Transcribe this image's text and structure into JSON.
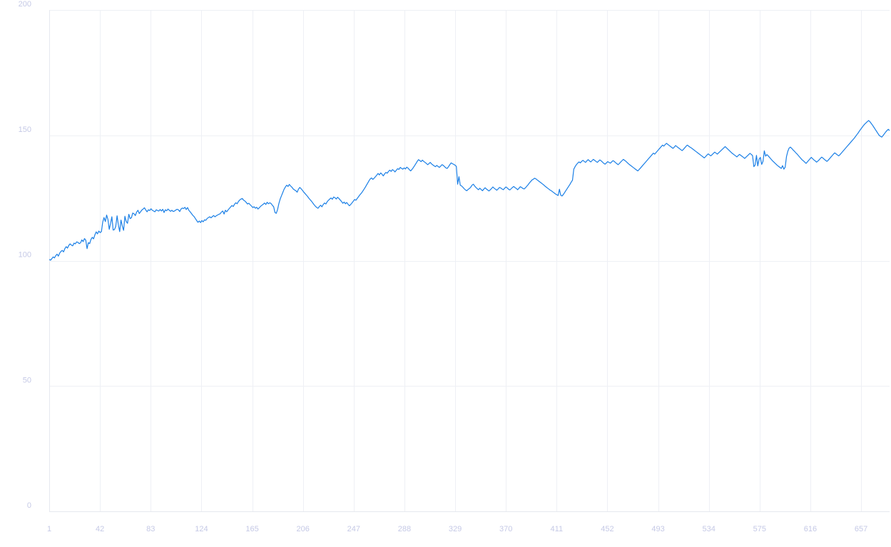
{
  "chart_data": {
    "type": "line",
    "title": "",
    "xlabel": "",
    "ylabel": "",
    "x_range": [
      1,
      680
    ],
    "ylim": [
      0,
      200
    ],
    "y_ticks": [
      0,
      50,
      100,
      150,
      200
    ],
    "x_ticks": [
      1,
      42,
      83,
      124,
      165,
      206,
      247,
      288,
      329,
      370,
      411,
      452,
      493,
      534,
      575,
      616,
      657
    ],
    "grid": true,
    "legend": "none",
    "colors": {
      "line": "#1a7fe6",
      "grid": "#eef0f5",
      "tick_text": "#c5c9e6"
    },
    "series": [
      {
        "values": [
          100.5,
          100.2,
          100.8,
          101.5,
          101.1,
          102.0,
          102.6,
          101.8,
          103.0,
          103.7,
          104.1,
          103.5,
          104.8,
          105.6,
          105.0,
          106.1,
          106.7,
          106.2,
          105.9,
          107.0,
          106.7,
          107.5,
          107.3,
          106.8,
          107.1,
          108.3,
          107.6,
          108.8,
          108.2,
          104.8,
          107.2,
          106.8,
          108.5,
          109.3,
          108.7,
          110.3,
          111.5,
          110.7,
          111.8,
          111.2,
          111.6,
          115.4,
          117.2,
          115.6,
          118.2,
          116.4,
          112.5,
          114.8,
          117.5,
          112.2,
          112.4,
          113.7,
          117.9,
          114.2,
          111.6,
          116.2,
          113.8,
          112.1,
          117.7,
          115.6,
          114.9,
          118.5,
          116.8,
          117.1,
          119.0,
          118.7,
          118.0,
          119.4,
          120.1,
          118.8,
          119.5,
          120.2,
          120.6,
          121.1,
          120.2,
          119.5,
          120.3,
          120.0,
          120.7,
          120.1,
          119.8,
          119.5,
          120.3,
          120.0,
          119.8,
          120.4,
          119.8,
          120.5,
          119.2,
          120.3,
          119.9,
          120.6,
          120.1,
          119.7,
          120.1,
          119.6,
          119.8,
          120.2,
          120.5,
          120.3,
          119.6,
          120.6,
          121.0,
          120.8,
          121.3,
          120.4,
          121.2,
          120.1,
          119.5,
          118.8,
          118.1,
          117.6,
          116.8,
          116.0,
          115.3,
          115.8,
          115.2,
          116.0,
          115.5,
          116.3,
          116.1,
          116.8,
          117.2,
          117.5,
          117.1,
          117.6,
          118.0,
          117.5,
          117.9,
          118.2,
          118.5,
          118.7,
          119.4,
          119.8,
          118.6,
          120.1,
          119.5,
          120.2,
          120.8,
          121.4,
          122.0,
          121.6,
          122.5,
          123.1,
          122.7,
          123.6,
          124.2,
          124.6,
          124.8,
          124.1,
          123.8,
          123.2,
          122.6,
          122.9,
          122.3,
          121.8,
          121.2,
          121.5,
          120.9,
          121.3,
          120.6,
          121.1,
          121.7,
          122.1,
          122.5,
          123.0,
          122.4,
          123.3,
          122.7,
          123.1,
          122.8,
          122.1,
          121.5,
          119.2,
          118.9,
          120.4,
          122.8,
          124.6,
          125.9,
          127.2,
          128.5,
          129.4,
          130.1,
          129.6,
          130.4,
          129.8,
          129.3,
          128.6,
          128.2,
          127.9,
          127.3,
          128.5,
          129.2,
          128.7,
          128.1,
          127.4,
          126.8,
          126.2,
          125.6,
          124.9,
          124.3,
          123.7,
          123.0,
          122.3,
          121.7,
          121.2,
          120.9,
          121.6,
          122.1,
          121.5,
          122.4,
          123.0,
          122.6,
          123.5,
          124.1,
          124.6,
          125.0,
          124.5,
          125.4,
          125.1,
          124.6,
          125.3,
          124.8,
          124.2,
          123.6,
          122.9,
          123.4,
          122.7,
          123.2,
          122.5,
          121.9,
          122.4,
          123.0,
          123.7,
          124.4,
          124.1,
          124.8,
          125.5,
          126.2,
          126.8,
          127.5,
          128.3,
          129.1,
          130.0,
          130.9,
          131.8,
          132.6,
          133.0,
          132.4,
          132.9,
          133.5,
          134.1,
          134.8,
          134.2,
          135.0,
          134.5,
          133.8,
          134.6,
          135.2,
          134.9,
          135.6,
          136.1,
          135.6,
          136.3,
          136.0,
          135.4,
          136.1,
          136.7,
          136.4,
          137.2,
          136.8,
          136.5,
          137.0,
          136.6,
          137.3,
          136.9,
          136.3,
          135.8,
          136.4,
          137.1,
          137.9,
          138.7,
          139.6,
          140.3,
          139.9,
          139.5,
          140.1,
          139.6,
          139.2,
          138.8,
          138.3,
          138.7,
          139.2,
          138.6,
          138.2,
          137.8,
          137.5,
          138.0,
          137.6,
          137.2,
          137.7,
          138.3,
          138.0,
          137.5,
          137.0,
          136.8,
          137.5,
          138.3,
          139.0,
          138.7,
          138.4,
          138.1,
          137.6,
          130.5,
          133.5,
          130.1,
          129.8,
          129.3,
          128.7,
          128.2,
          127.9,
          128.4,
          128.8,
          129.3,
          130.1,
          130.5,
          129.8,
          129.2,
          128.7,
          128.3,
          128.9,
          128.4,
          127.9,
          128.5,
          129.1,
          128.6,
          128.2,
          127.8,
          128.3,
          128.8,
          129.4,
          128.9,
          128.5,
          128.1,
          128.6,
          129.2,
          129.0,
          128.6,
          128.3,
          128.9,
          129.4,
          129.0,
          128.5,
          128.2,
          128.7,
          129.2,
          129.6,
          129.1,
          128.8,
          128.3,
          128.9,
          129.5,
          129.2,
          128.8,
          128.6,
          129.1,
          129.7,
          130.3,
          131.0,
          131.6,
          132.2,
          132.5,
          132.9,
          132.6,
          132.2,
          131.8,
          131.4,
          131.0,
          130.6,
          130.2,
          129.7,
          129.3,
          128.9,
          128.5,
          128.1,
          127.8,
          127.4,
          127.0,
          126.6,
          126.3,
          126.0,
          128.5,
          126.1,
          125.8,
          126.4,
          127.2,
          128.0,
          128.8,
          129.6,
          130.4,
          131.3,
          132.1,
          136.5,
          137.5,
          138.3,
          138.9,
          139.4,
          139.0,
          139.6,
          140.0,
          139.6,
          139.2,
          139.8,
          140.3,
          139.8,
          139.4,
          139.9,
          140.4,
          140.0,
          139.6,
          139.2,
          139.7,
          140.2,
          139.8,
          139.3,
          138.8,
          138.5,
          139.0,
          139.5,
          139.2,
          138.9,
          139.4,
          139.9,
          139.6,
          139.1,
          138.7,
          138.3,
          138.8,
          139.4,
          139.9,
          140.4,
          140.0,
          139.6,
          139.1,
          138.6,
          138.2,
          137.8,
          137.4,
          137.0,
          136.6,
          136.2,
          135.8,
          136.3,
          136.9,
          137.5,
          138.1,
          138.7,
          139.3,
          139.9,
          140.5,
          141.1,
          141.7,
          142.3,
          142.9,
          142.5,
          143.1,
          143.7,
          144.3,
          144.9,
          145.5,
          146.1,
          145.7,
          146.3,
          146.8,
          146.4,
          146.0,
          145.6,
          145.2,
          144.8,
          145.3,
          145.9,
          145.5,
          145.1,
          144.7,
          144.3,
          143.9,
          144.4,
          145.0,
          145.6,
          146.1,
          145.7,
          145.3,
          145.0,
          144.6,
          144.2,
          143.8,
          143.4,
          143.0,
          142.6,
          142.2,
          141.8,
          141.4,
          141.0,
          141.5,
          142.1,
          142.6,
          142.2,
          141.8,
          142.3,
          142.8,
          143.3,
          142.9,
          142.5,
          143.0,
          143.5,
          144.0,
          144.5,
          145.0,
          145.5,
          145.0,
          144.5,
          144.0,
          143.5,
          143.0,
          142.6,
          142.2,
          141.8,
          141.4,
          141.9,
          142.4,
          142.0,
          141.6,
          141.2,
          140.8,
          141.3,
          141.8,
          142.3,
          142.8,
          142.4,
          141.9,
          137.5,
          138.2,
          142.0,
          137.8,
          140.5,
          141.2,
          138.4,
          139.6,
          143.8,
          141.7,
          142.3,
          141.8,
          141.2,
          140.6,
          140.0,
          139.5,
          139.0,
          138.5,
          138.0,
          137.6,
          137.2,
          136.8,
          137.9,
          136.5,
          137.3,
          141.5,
          143.6,
          144.9,
          145.3,
          144.8,
          144.2,
          143.7,
          143.1,
          142.6,
          142.0,
          141.4,
          140.8,
          140.2,
          139.8,
          139.3,
          138.8,
          139.4,
          140.0,
          140.6,
          141.2,
          140.7,
          140.2,
          139.8,
          139.3,
          139.7,
          140.2,
          140.8,
          141.3,
          140.9,
          140.4,
          140.0,
          139.6,
          140.1,
          140.7,
          141.3,
          141.9,
          142.5,
          143.0,
          142.6,
          142.2,
          141.8,
          142.3,
          142.9,
          143.5,
          144.1,
          144.7,
          145.3,
          145.9,
          146.5,
          147.1,
          147.7,
          148.3,
          148.9,
          149.6,
          150.3,
          151.0,
          151.8,
          152.5,
          153.2,
          153.9,
          154.5,
          155.0,
          155.5,
          155.9,
          155.4,
          154.7,
          154.0,
          153.2,
          152.4,
          151.6,
          150.8,
          150.0,
          149.6,
          149.3,
          149.9,
          150.6,
          151.3,
          151.9,
          152.4,
          151.9
        ]
      }
    ]
  }
}
